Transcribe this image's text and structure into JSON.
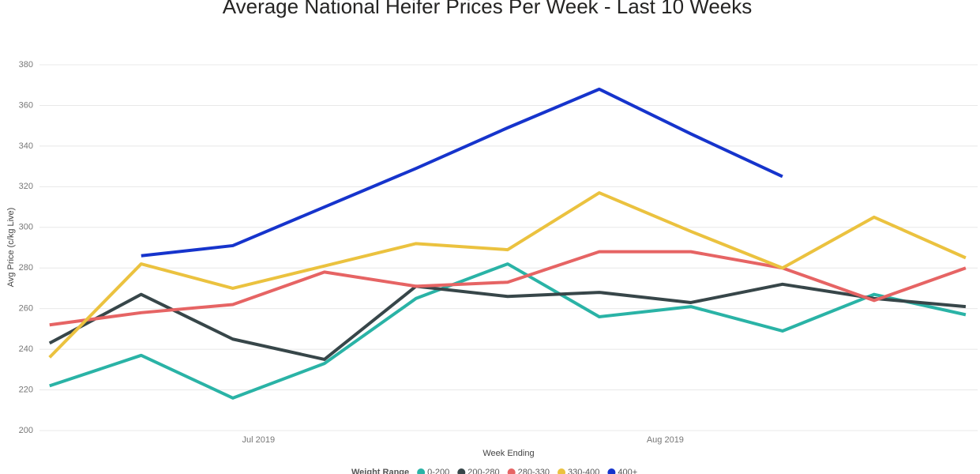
{
  "chart_data": {
    "type": "line",
    "title": "Average National Heifer Prices Per Week - Last 10 Weeks",
    "x_label": "Week Ending",
    "y_label": "Avg Price (c/kg Live)",
    "legend_title": "Weight Range",
    "categories": [
      null,
      null,
      null,
      null,
      null,
      null,
      null,
      null,
      null,
      null,
      null
    ],
    "xlim": [
      -0.11,
      10.13
    ],
    "xticks": [
      {
        "value": 2.28,
        "label": "Jul 2019"
      },
      {
        "value": 6.72,
        "label": "Aug 2019"
      }
    ],
    "ylim": [
      200,
      380
    ],
    "yticks": [
      200,
      220,
      240,
      260,
      280,
      300,
      320,
      340,
      360,
      380
    ],
    "grid": true,
    "legend": "bottom",
    "series": [
      {
        "name": "0-200",
        "color": "#2ab3a6",
        "values": [
          222,
          237,
          216,
          233,
          265,
          282,
          256,
          261,
          249,
          267,
          257
        ]
      },
      {
        "name": "200-280",
        "color": "#374649",
        "values": [
          243,
          267,
          245,
          235,
          271,
          266,
          268,
          263,
          272,
          265,
          261
        ]
      },
      {
        "name": "280-330",
        "color": "#e66464",
        "values": [
          252,
          258,
          262,
          278,
          271,
          273,
          288,
          288,
          280,
          264,
          280
        ]
      },
      {
        "name": "330-400",
        "color": "#ebc23f",
        "values": [
          236,
          282,
          270,
          281,
          292,
          289,
          317,
          298,
          280,
          305,
          285
        ]
      },
      {
        "name": "400+",
        "color": "#1634cc",
        "values": [
          null,
          286,
          291,
          310,
          329,
          349,
          368,
          346,
          325,
          null,
          null
        ]
      }
    ]
  }
}
